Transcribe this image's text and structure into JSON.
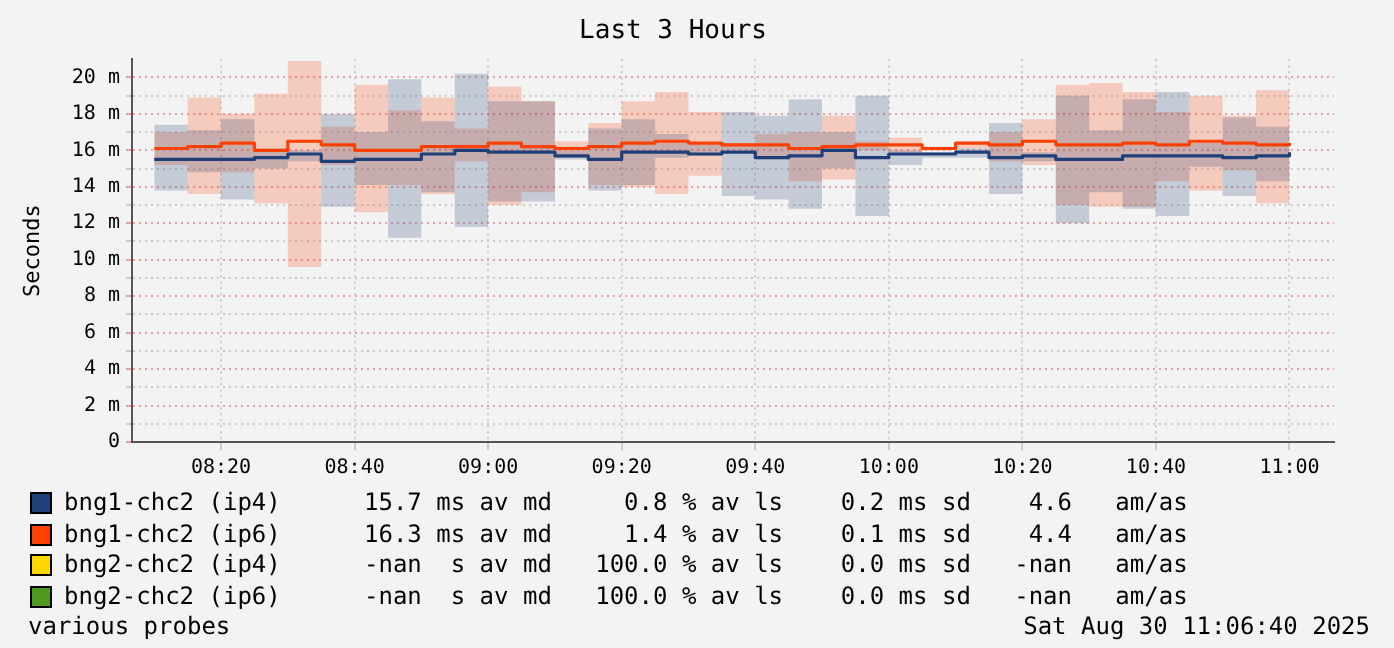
{
  "chart_data": {
    "type": "step",
    "title": "Last 3 Hours",
    "ylabel": "Seconds",
    "legend": "bottom",
    "grid": true,
    "x": [
      8.1667,
      8.25,
      8.3333,
      8.4167,
      8.5,
      8.5833,
      8.6667,
      8.75,
      8.8333,
      8.9167,
      9,
      9.0833,
      9.1667,
      9.25,
      9.3333,
      9.4167,
      9.5,
      9.5833,
      9.6667,
      9.75,
      9.8333,
      9.9167,
      10,
      10.0833,
      10.1667,
      10.25,
      10.3333,
      10.4167,
      10.5,
      10.5833,
      10.6667,
      10.75,
      10.8333,
      10.9167,
      11
    ],
    "xlim": [
      8.1111,
      11.1111
    ],
    "xticks": [
      {
        "value": 8.3333,
        "label": "08:20"
      },
      {
        "value": 8.6667,
        "label": "08:40"
      },
      {
        "value": 9,
        "label": "09:00"
      },
      {
        "value": 9.3333,
        "label": "09:20"
      },
      {
        "value": 9.6667,
        "label": "09:40"
      },
      {
        "value": 10,
        "label": "10:00"
      },
      {
        "value": 10.3333,
        "label": "10:20"
      },
      {
        "value": 10.6667,
        "label": "10:40"
      },
      {
        "value": 11,
        "label": "11:00"
      }
    ],
    "ylim": [
      0,
      21
    ],
    "yticks": [
      0,
      {
        "value": 1,
        "label": null
      },
      {
        "value": 2,
        "label": "2 m"
      },
      {
        "value": 3,
        "label": null
      },
      {
        "value": 4,
        "label": "4 m"
      },
      {
        "value": 5,
        "label": null
      },
      {
        "value": 6,
        "label": "6 m"
      },
      {
        "value": 7,
        "label": null
      },
      {
        "value": 8,
        "label": "8 m"
      },
      {
        "value": 9,
        "label": null
      },
      {
        "value": 10,
        "label": "10 m"
      },
      {
        "value": 11,
        "label": null
      },
      {
        "value": 12,
        "label": "12 m"
      },
      {
        "value": 13,
        "label": null
      },
      {
        "value": 14,
        "label": "14 m"
      },
      {
        "value": 15,
        "label": null
      },
      {
        "value": 16,
        "label": "16 m"
      },
      {
        "value": 17,
        "label": null
      },
      {
        "value": 18,
        "label": "18 m"
      },
      {
        "value": 19,
        "label": null
      },
      {
        "value": 20,
        "label": "20 m"
      }
    ],
    "series": [
      {
        "name": "bng1-chc2 (ip4)",
        "color": "#1f3f78",
        "values": [
          15.5,
          15.5,
          15.5,
          15.6,
          15.8,
          15.4,
          15.5,
          15.5,
          15.8,
          16.0,
          15.9,
          15.9,
          15.7,
          15.5,
          15.9,
          15.9,
          15.8,
          15.9,
          15.6,
          15.7,
          16.0,
          15.6,
          15.8,
          15.8,
          15.9,
          15.6,
          15.7,
          15.5,
          15.5,
          15.7,
          15.7,
          15.7,
          15.6,
          15.7,
          15.9
        ],
        "lower": [
          13.8,
          14.8,
          13.3,
          15.0,
          15.4,
          12.9,
          14.1,
          11.2,
          13.7,
          11.8,
          13.2,
          13.2,
          15.5,
          13.8,
          14.1,
          15.6,
          15.7,
          13.5,
          13.3,
          12.8,
          15.0,
          12.4,
          15.2,
          15.6,
          15.6,
          13.6,
          15.4,
          12.0,
          13.7,
          12.8,
          12.4,
          15.1,
          13.5,
          14.3,
          13.5
        ],
        "upper": [
          17.4,
          17.1,
          17.7,
          16.1,
          16.0,
          18.0,
          17.0,
          19.9,
          17.6,
          20.2,
          18.7,
          18.7,
          16.0,
          17.2,
          17.7,
          16.9,
          16.4,
          18.1,
          17.9,
          18.8,
          17.0,
          19.0,
          16.0,
          15.9,
          16.1,
          17.5,
          15.9,
          19.0,
          17.1,
          18.8,
          19.2,
          16.4,
          17.8,
          17.3,
          18.2
        ]
      },
      {
        "name": "bng1-chc2 (ip6)",
        "color": "#ff4000",
        "values": [
          16.1,
          16.2,
          16.4,
          16.0,
          16.5,
          16.3,
          16.0,
          16.0,
          16.2,
          16.2,
          16.4,
          16.2,
          16.1,
          16.2,
          16.4,
          16.5,
          16.4,
          16.3,
          16.3,
          16.1,
          16.2,
          16.3,
          16.3,
          16.1,
          16.4,
          16.3,
          16.5,
          16.3,
          16.3,
          16.4,
          16.3,
          16.5,
          16.4,
          16.3,
          16.4
        ],
        "lower": [
          15.2,
          13.6,
          14.8,
          13.1,
          9.6,
          15.2,
          12.6,
          14.1,
          13.6,
          15.4,
          13.0,
          13.7,
          15.6,
          14.1,
          14.0,
          13.6,
          14.6,
          16.0,
          15.5,
          14.3,
          14.4,
          16.0,
          15.9,
          16.0,
          16.1,
          15.4,
          15.2,
          13.0,
          12.9,
          12.9,
          14.3,
          13.8,
          14.9,
          13.1,
          14.0
        ],
        "upper": [
          17.0,
          18.9,
          18.0,
          19.1,
          20.9,
          17.3,
          19.6,
          18.2,
          18.9,
          17.2,
          19.5,
          18.7,
          16.5,
          17.5,
          18.7,
          19.2,
          18.1,
          16.4,
          16.9,
          17.0,
          17.9,
          16.5,
          16.7,
          16.2,
          16.5,
          17.0,
          17.7,
          19.6,
          19.7,
          19.2,
          18.1,
          19.0,
          17.9,
          19.3,
          18.7
        ]
      },
      {
        "name": "bng2-chc2 (ip4)",
        "color": "#ffd700",
        "values": [
          null,
          null,
          null,
          null,
          null,
          null,
          null,
          null,
          null,
          null,
          null,
          null,
          null,
          null,
          null,
          null,
          null,
          null,
          null,
          null,
          null,
          null,
          null,
          null,
          null,
          null,
          null,
          null,
          null,
          null,
          null,
          null,
          null,
          null,
          null
        ]
      },
      {
        "name": "bng2-chc2 (ip6)",
        "color": "#4f9a1e",
        "values": [
          null,
          null,
          null,
          null,
          null,
          null,
          null,
          null,
          null,
          null,
          null,
          null,
          null,
          null,
          null,
          null,
          null,
          null,
          null,
          null,
          null,
          null,
          null,
          null,
          null,
          null,
          null,
          null,
          null,
          null,
          null,
          null,
          null,
          null,
          null
        ]
      }
    ],
    "annotations": [
      "15.7 ms av md     0.8 % av ls    0.2 ms sd    4.6   am/as",
      "16.3 ms av md     1.4 % av ls    0.1 ms sd    4.4   am/as",
      "-nan  s av md   100.0 % av ls    0.0 ms sd   -nan   am/as",
      "-nan  s av md   100.0 % av ls    0.0 ms sd   -nan   am/as",
      "various probes",
      "Sat Aug 30 11:06:40 2025"
    ]
  }
}
